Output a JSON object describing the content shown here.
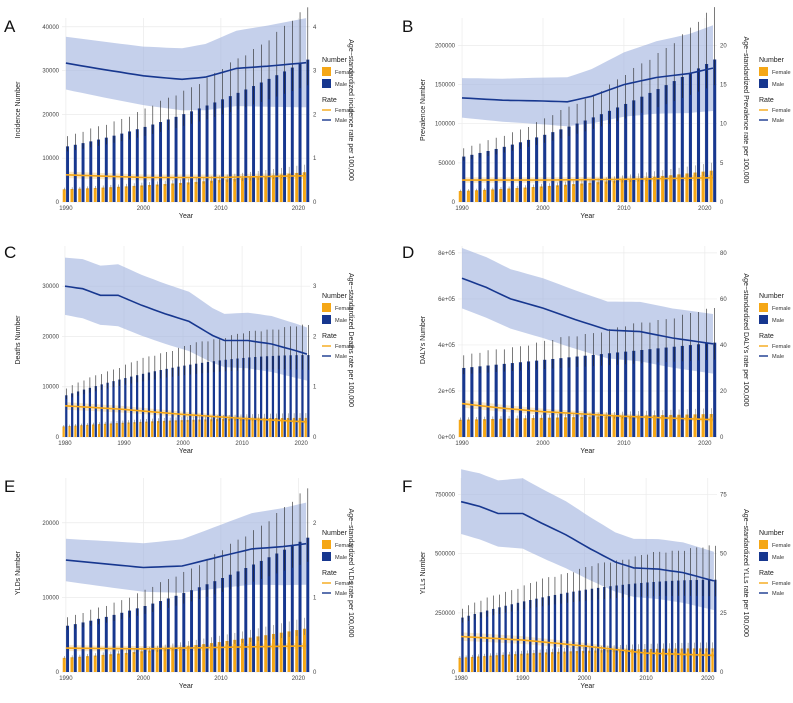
{
  "colors": {
    "female": "#f5a716",
    "male": "#17378f",
    "male_band": "#9fb0dd",
    "grid": "#ebebeb",
    "errorbar": "#222222"
  },
  "legend": {
    "number_title": "Number",
    "rate_title": "Rate",
    "female": "Female",
    "male": "Male"
  },
  "chart_data": [
    {
      "panel": "A",
      "type": "bar+line",
      "xlabel": "Year",
      "ylabel": "Incidence Number",
      "y2label": "Age−standardized incidence rate per 100,000",
      "start_year": 1990,
      "end_year": 2021,
      "xticks": [
        1990,
        2000,
        2010,
        2020
      ],
      "ylim": [
        0,
        42000
      ],
      "yticks": [
        0,
        10000,
        20000,
        30000,
        40000
      ],
      "y2lim": [
        0,
        4.2
      ],
      "y2ticks": [
        0,
        1,
        2,
        3,
        4
      ],
      "series": [
        {
          "name": "Male",
          "kind": "number",
          "start": 12700,
          "end": 32500,
          "pattern": "accel"
        },
        {
          "name": "Female",
          "kind": "number",
          "start": 2900,
          "end": 6800,
          "pattern": "accel"
        },
        {
          "name": "Male",
          "kind": "rate",
          "points": [
            [
              1990,
              3.17
            ],
            [
              1995,
              3.02
            ],
            [
              2000,
              2.88
            ],
            [
              2003,
              2.83
            ],
            [
              2005,
              2.8
            ],
            [
              2008,
              2.85
            ],
            [
              2012,
              3.05
            ],
            [
              2016,
              3.1
            ],
            [
              2021,
              3.18
            ]
          ]
        },
        {
          "name": "Female",
          "kind": "rate",
          "points": [
            [
              1990,
              0.62
            ],
            [
              2000,
              0.56
            ],
            [
              2010,
              0.56
            ],
            [
              2021,
              0.6
            ]
          ]
        }
      ]
    },
    {
      "panel": "B",
      "type": "bar+line",
      "xlabel": "Year",
      "ylabel": "Prevalence Number",
      "y2label": "Age−standardized Prevalence rate per 100,000",
      "start_year": 1990,
      "end_year": 2021,
      "xticks": [
        1990,
        2000,
        2010,
        2020
      ],
      "ylim": [
        0,
        235000
      ],
      "yticks": [
        0,
        50000,
        100000,
        150000,
        200000
      ],
      "y2lim": [
        0,
        23.5
      ],
      "y2ticks": [
        0,
        5,
        10,
        15,
        20
      ],
      "series": [
        {
          "name": "Male",
          "kind": "number",
          "start": 58000,
          "end": 182000,
          "pattern": "accel"
        },
        {
          "name": "Female",
          "kind": "number",
          "start": 14000,
          "end": 40000,
          "pattern": "accel"
        },
        {
          "name": "Male",
          "kind": "rate",
          "points": [
            [
              1990,
              13.3
            ],
            [
              1995,
              13.0
            ],
            [
              2000,
              12.9
            ],
            [
              2003,
              12.8
            ],
            [
              2006,
              13.5
            ],
            [
              2010,
              15.0
            ],
            [
              2014,
              15.9
            ],
            [
              2018,
              16.4
            ],
            [
              2021,
              17.1
            ]
          ]
        },
        {
          "name": "Female",
          "kind": "rate",
          "points": [
            [
              1990,
              2.8
            ],
            [
              2000,
              2.8
            ],
            [
              2010,
              2.9
            ],
            [
              2021,
              3.1
            ]
          ]
        }
      ]
    },
    {
      "panel": "C",
      "type": "bar+line",
      "xlabel": "Year",
      "ylabel": "Deaths Number",
      "y2label": "Age−standardized Deaths rate per 100,000",
      "start_year": 1980,
      "end_year": 2021,
      "xticks": [
        1980,
        1990,
        2000,
        2010,
        2020
      ],
      "ylim": [
        0,
        38000
      ],
      "yticks": [
        0,
        10000,
        20000,
        30000
      ],
      "y2lim": [
        0,
        3.8
      ],
      "y2ticks": [
        0,
        1,
        2,
        3
      ],
      "series": [
        {
          "name": "Male",
          "kind": "number",
          "start": 8300,
          "end": 16300,
          "pattern": "sat"
        },
        {
          "name": "Female",
          "kind": "number",
          "start": 2100,
          "end": 3800,
          "pattern": "sat"
        },
        {
          "name": "Male",
          "kind": "rate",
          "points": [
            [
              1980,
              3.0
            ],
            [
              1983,
              2.95
            ],
            [
              1986,
              2.82
            ],
            [
              1989,
              2.82
            ],
            [
              1993,
              2.62
            ],
            [
              1997,
              2.45
            ],
            [
              2001,
              2.3
            ],
            [
              2005,
              2.02
            ],
            [
              2007,
              1.92
            ],
            [
              2011,
              1.92
            ],
            [
              2015,
              1.85
            ],
            [
              2019,
              1.72
            ],
            [
              2021,
              1.65
            ]
          ]
        },
        {
          "name": "Female",
          "kind": "rate",
          "points": [
            [
              1980,
              0.62
            ],
            [
              1990,
              0.55
            ],
            [
              2000,
              0.45
            ],
            [
              2010,
              0.37
            ],
            [
              2021,
              0.3
            ]
          ]
        }
      ]
    },
    {
      "panel": "D",
      "type": "bar+line",
      "xlabel": "Year",
      "ylabel": "DALYs Number",
      "y2label": "Age−standardized DALYs rate per 100,000",
      "start_year": 1990,
      "end_year": 2021,
      "xticks": [
        1990,
        2000,
        2010,
        2020
      ],
      "ylim": [
        0,
        830000
      ],
      "yticks": [
        0,
        200000,
        400000,
        600000,
        800000
      ],
      "ytick_labels": [
        "0e+00",
        "2e+05",
        "4e+05",
        "6e+05",
        "8e+05"
      ],
      "y2lim": [
        0,
        83
      ],
      "y2ticks": [
        0,
        20,
        40,
        60,
        80
      ],
      "series": [
        {
          "name": "Male",
          "kind": "number",
          "start": 300000,
          "end": 410000,
          "pattern": "lin"
        },
        {
          "name": "Female",
          "kind": "number",
          "start": 75000,
          "end": 100000,
          "pattern": "lin"
        },
        {
          "name": "Male",
          "kind": "rate",
          "points": [
            [
              1990,
              69
            ],
            [
              1993,
              65
            ],
            [
              1996,
              60
            ],
            [
              2000,
              56
            ],
            [
              2004,
              51
            ],
            [
              2008,
              46.5
            ],
            [
              2012,
              45.8
            ],
            [
              2016,
              43
            ],
            [
              2021,
              40.5
            ]
          ]
        },
        {
          "name": "Female",
          "kind": "rate",
          "points": [
            [
              1990,
              14.5
            ],
            [
              1995,
              12.5
            ],
            [
              2000,
              11
            ],
            [
              2010,
              9
            ],
            [
              2021,
              7.5
            ]
          ]
        }
      ]
    },
    {
      "panel": "E",
      "type": "bar+line",
      "xlabel": "Year",
      "ylabel": "YLDs Number",
      "y2label": "Age−standardized YLDs rate per 100,000",
      "start_year": 1990,
      "end_year": 2021,
      "xticks": [
        1990,
        2000,
        2010,
        2020
      ],
      "ylim": [
        0,
        26000
      ],
      "yticks": [
        0,
        10000,
        20000
      ],
      "y2lim": [
        0,
        2.6
      ],
      "y2ticks": [
        0,
        1,
        2
      ],
      "series": [
        {
          "name": "Male",
          "kind": "number",
          "start": 6200,
          "end": 18000,
          "pattern": "accel"
        },
        {
          "name": "Female",
          "kind": "number",
          "start": 1900,
          "end": 5800,
          "pattern": "accel"
        },
        {
          "name": "Male",
          "kind": "rate",
          "points": [
            [
              1990,
              1.5
            ],
            [
              1995,
              1.45
            ],
            [
              2000,
              1.4
            ],
            [
              2005,
              1.42
            ],
            [
              2010,
              1.55
            ],
            [
              2014,
              1.65
            ],
            [
              2018,
              1.68
            ],
            [
              2021,
              1.72
            ]
          ]
        },
        {
          "name": "Female",
          "kind": "rate",
          "points": [
            [
              1990,
              0.32
            ],
            [
              2000,
              0.31
            ],
            [
              2010,
              0.33
            ],
            [
              2021,
              0.35
            ]
          ]
        }
      ]
    },
    {
      "panel": "F",
      "type": "bar+line",
      "xlabel": "Year",
      "ylabel": "YLLs Number",
      "y2label": "Age−standardized YLLs rate per 100,000",
      "start_year": 1980,
      "end_year": 2021,
      "xticks": [
        1980,
        1990,
        2000,
        2010,
        2020
      ],
      "ylim": [
        0,
        820000
      ],
      "yticks": [
        0,
        250000,
        500000,
        750000
      ],
      "y2lim": [
        0,
        82
      ],
      "y2ticks": [
        0,
        25,
        50,
        75
      ],
      "series": [
        {
          "name": "Male",
          "kind": "number",
          "start": 230000,
          "end": 390000,
          "pattern": "sat"
        },
        {
          "name": "Female",
          "kind": "number",
          "start": 60000,
          "end": 100000,
          "pattern": "sat"
        },
        {
          "name": "Male",
          "kind": "rate",
          "points": [
            [
              1980,
              72
            ],
            [
              1983,
              70
            ],
            [
              1986,
              67
            ],
            [
              1990,
              67
            ],
            [
              1993,
              63
            ],
            [
              1997,
              58
            ],
            [
              2001,
              52
            ],
            [
              2005,
              46.5
            ],
            [
              2008,
              44
            ],
            [
              2012,
              43.5
            ],
            [
              2016,
              42
            ],
            [
              2021,
              38.5
            ]
          ]
        },
        {
          "name": "Female",
          "kind": "rate",
          "points": [
            [
              1980,
              15
            ],
            [
              1990,
              13.5
            ],
            [
              2000,
              11
            ],
            [
              2010,
              8
            ],
            [
              2021,
              7
            ]
          ]
        }
      ]
    }
  ]
}
